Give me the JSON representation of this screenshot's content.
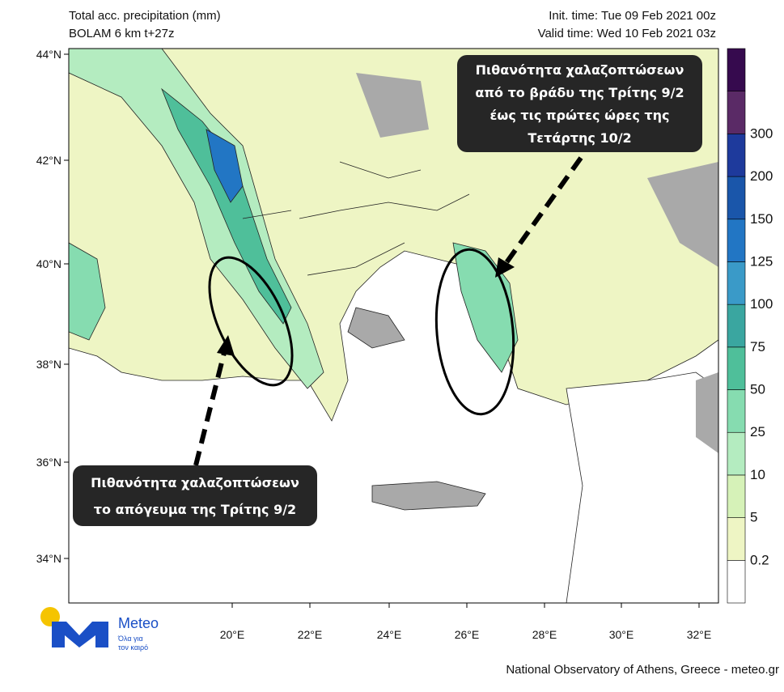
{
  "header": {
    "title": "Total acc. precipitation (mm)",
    "subtitle": "BOLAM 6 km t+27z",
    "init_time": "Init. time: Tue 09 Feb 2021 00z",
    "valid_time": "Valid time: Wed 10 Feb 2021 03z"
  },
  "map": {
    "lat_ticks": [
      "44°N",
      "42°N",
      "40°N",
      "38°N",
      "36°N",
      "34°N"
    ],
    "lon_ticks": [
      "20°E",
      "22°E",
      "24°E",
      "26°E",
      "28°E",
      "30°E",
      "32°E"
    ]
  },
  "colorbar": {
    "levels": [
      "0.2",
      "5",
      "10",
      "25",
      "50",
      "75",
      "100",
      "125",
      "150",
      "200",
      "300"
    ],
    "colors": [
      "#ffffff",
      "#eef5c4",
      "#d6f2b8",
      "#b4ecc0",
      "#86dcb0",
      "#4fbf9a",
      "#3aa6a0",
      "#3a9ac8",
      "#2276c4",
      "#1a56aa",
      "#1e3a9c",
      "#5a2a66",
      "#360a4e"
    ]
  },
  "annotations": [
    {
      "lines": [
        "Πιθανότητα χαλαζοπτώσεων",
        "από το  βράδυ της Τρίτης 9/2",
        "έως τις πρώτες ώρες της",
        "Τετάρτης 10/2"
      ]
    },
    {
      "lines": [
        "Πιθανότητα χαλαζοπτώσεων",
        "το απόγευμα της Τρίτης 9/2"
      ]
    }
  ],
  "logo": {
    "name": "Meteo",
    "tagline": [
      "Όλα για",
      "τον καιρό"
    ]
  },
  "footer": "National Observatory of Athens, Greece - meteo.gr"
}
